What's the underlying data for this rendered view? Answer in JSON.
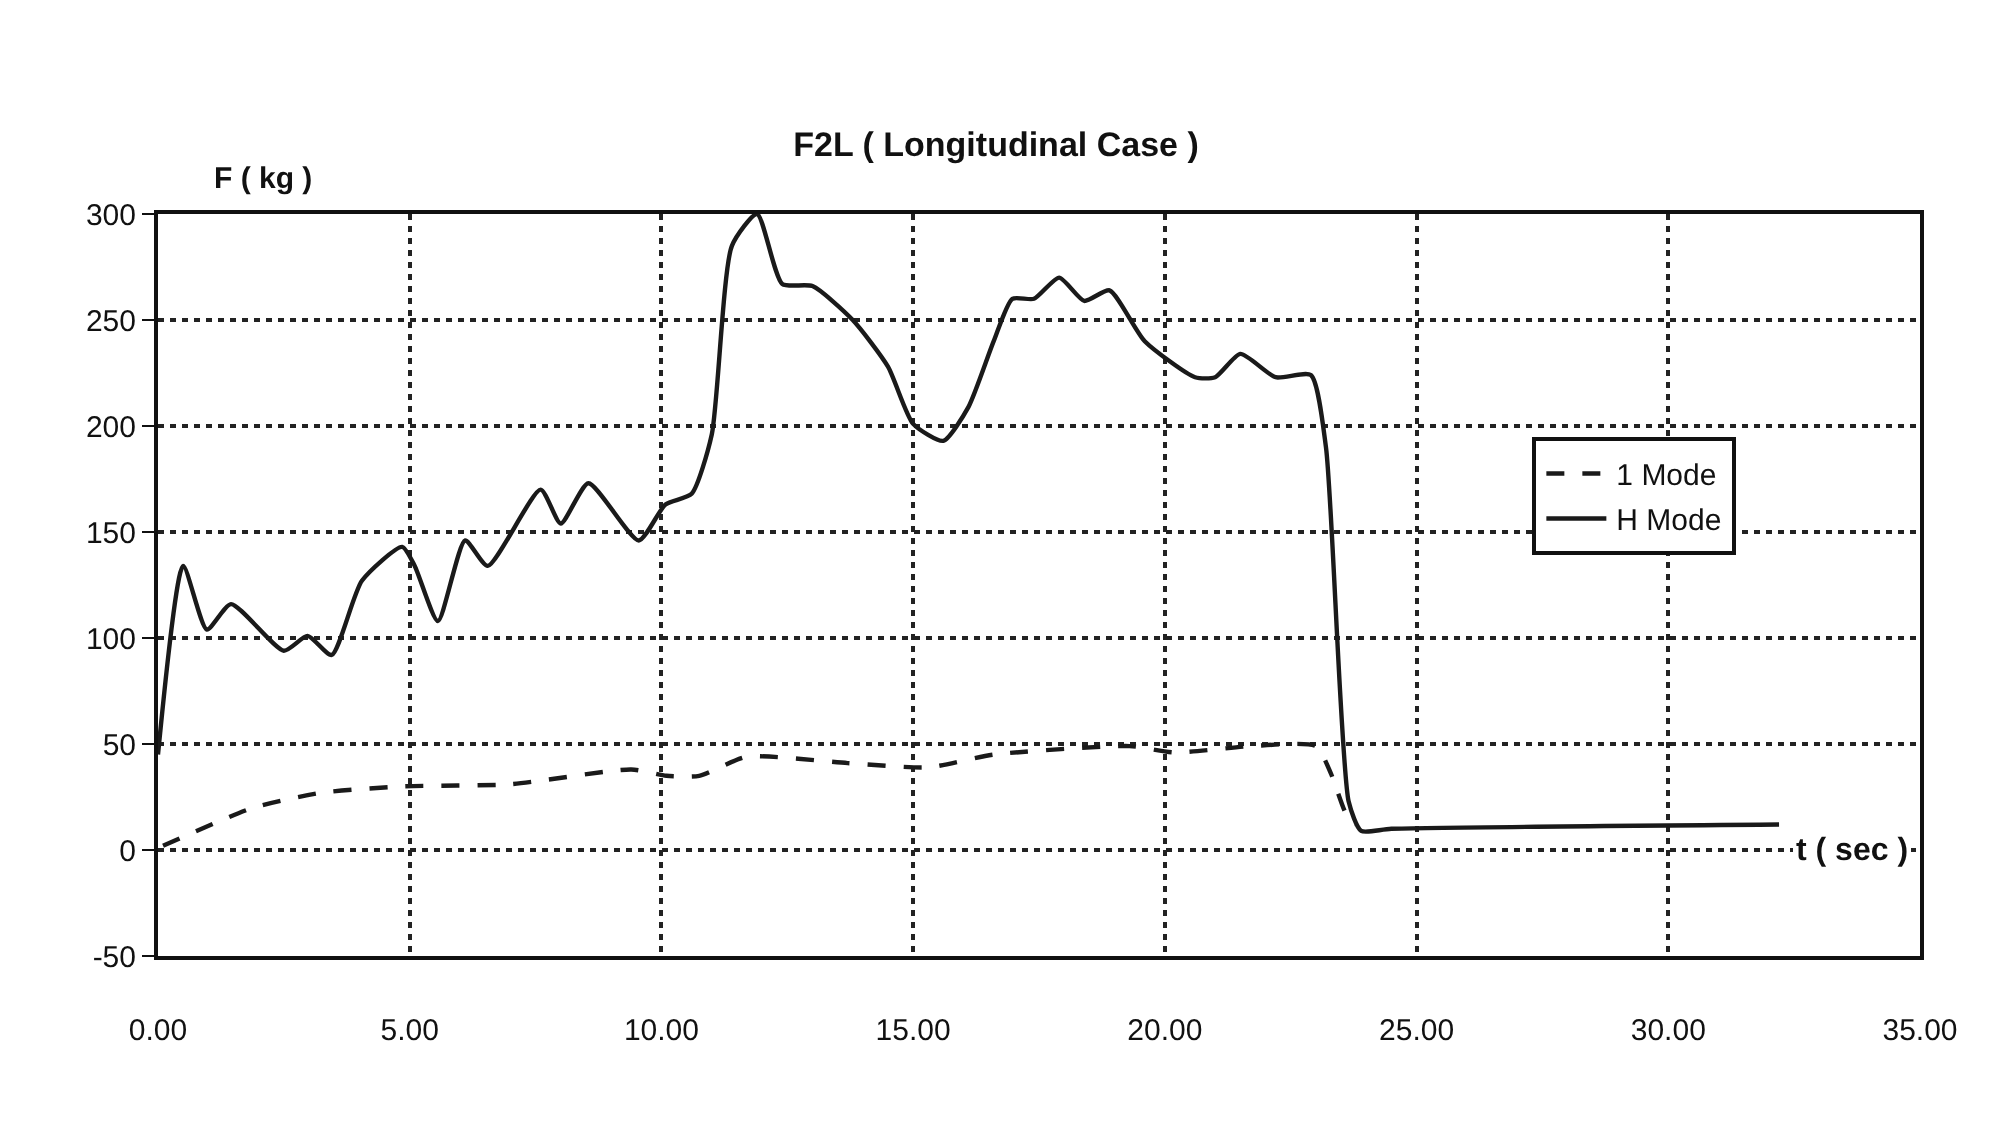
{
  "chart_data": {
    "type": "line",
    "title": "F2L ( Longitudinal Case )",
    "xlabel": "t ( sec )",
    "ylabel": "F ( kg )",
    "xlim": [
      0,
      35
    ],
    "ylim": [
      -50,
      300
    ],
    "xticks": [
      {
        "value": 0,
        "label": "0.00"
      },
      {
        "value": 5,
        "label": "5.00"
      },
      {
        "value": 10,
        "label": "10.00"
      },
      {
        "value": 15,
        "label": "15.00"
      },
      {
        "value": 20,
        "label": "20.00"
      },
      {
        "value": 25,
        "label": "25.00"
      },
      {
        "value": 30,
        "label": "30.00"
      },
      {
        "value": 35,
        "label": "35.00"
      }
    ],
    "yticks": [
      -50,
      0,
      50,
      100,
      150,
      200,
      250,
      300
    ],
    "grid": true,
    "legend": "right",
    "marker": "none",
    "series": [
      {
        "name": "1 Mode",
        "color": "#1a1a1a",
        "line_style": "dashed",
        "x": [
          0.1,
          1.9,
          3.25,
          4.85,
          7.0,
          9.4,
          10.1,
          10.75,
          11.7,
          13.7,
          15.3,
          16.6,
          19.3,
          20.2,
          21.7,
          23.0,
          23.3,
          23.6,
          23.8
        ],
        "values": [
          2,
          20,
          27,
          30,
          31,
          38,
          35,
          35,
          44,
          41,
          39,
          45,
          49,
          46,
          49,
          49,
          36,
          17,
          12
        ]
      },
      {
        "name": "H Mode",
        "color": "#1a1a1a",
        "line_style": "solid",
        "x": [
          0,
          0.5,
          0.97,
          1.45,
          2.5,
          2.97,
          3.45,
          4.05,
          4.85,
          5.1,
          5.56,
          6.1,
          6.55,
          7.6,
          8.0,
          8.55,
          9.55,
          10.08,
          10.6,
          11.0,
          11.4,
          11.9,
          12.4,
          13.0,
          13.8,
          14.5,
          15.0,
          15.6,
          16.1,
          16.6,
          16.97,
          17.4,
          17.9,
          18.4,
          18.9,
          19.6,
          20.6,
          21.0,
          21.5,
          22.2,
          22.9,
          23.2,
          23.65,
          23.9,
          24.5,
          32.2
        ],
        "values": [
          45,
          134,
          104,
          116,
          94,
          101,
          92,
          127,
          143,
          134,
          108,
          146,
          134,
          170,
          154,
          173,
          146,
          163,
          168,
          196,
          285,
          300,
          267,
          266,
          250,
          228,
          201,
          193,
          209,
          240,
          260,
          260,
          270,
          259,
          264,
          240,
          223,
          223,
          234,
          223,
          224,
          190,
          23,
          9,
          10,
          12
        ]
      }
    ]
  }
}
